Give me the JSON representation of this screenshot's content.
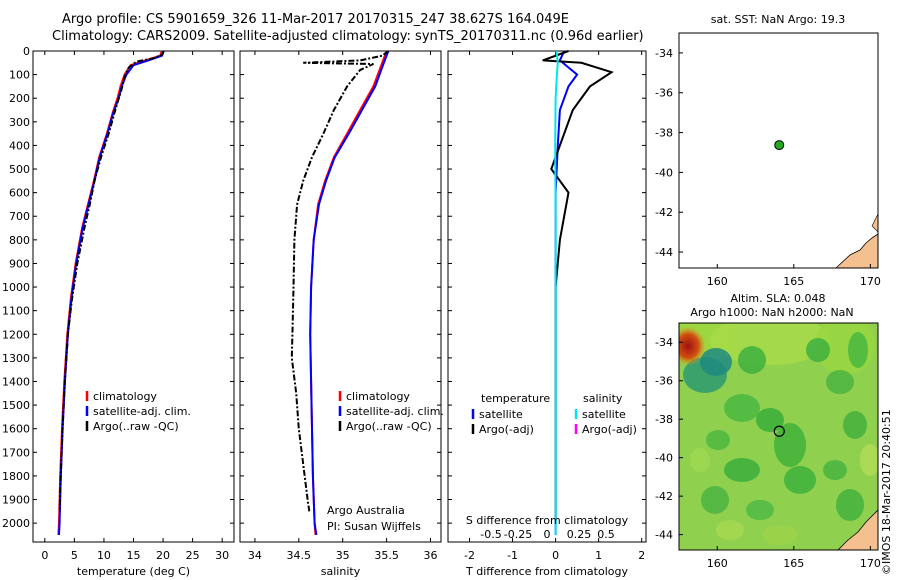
{
  "header": {
    "line1": "Argo profile: CS 5901659_326 11-Mar-2017 20170315_247 38.627S 164.049E",
    "line2": "Climatology: CARS2009. Satellite-adjusted climatology: synTS_20170311.nc (0.96d earlier)"
  },
  "credit": "©IMOS 18-Mar-2017 20:40:51",
  "colors": {
    "climatology": "#ff0000",
    "satellite": "#0000ff",
    "argo": "#000000",
    "cyan": "#00e5ee",
    "magenta": "#ff00ff",
    "land": "#f5c08f"
  },
  "chart_data": [
    {
      "type": "line",
      "panel": "temperature",
      "xlabel": "temperature (deg C)",
      "x_ticks": [
        0,
        5,
        10,
        15,
        20,
        25,
        30
      ],
      "xlim": [
        -2,
        32
      ],
      "ylim": [
        2080,
        0
      ],
      "y_ticks": [
        0,
        100,
        200,
        300,
        400,
        500,
        600,
        700,
        800,
        900,
        1000,
        1100,
        1200,
        1300,
        1400,
        1500,
        1600,
        1700,
        1800,
        1900,
        2000
      ],
      "legend": [
        "climatology",
        "satellite-adj. clim.",
        "Argo(..raw -QC)"
      ],
      "series": [
        {
          "name": "climatology",
          "values": [
            [
              19.8,
              0
            ],
            [
              19.5,
              20
            ],
            [
              17,
              40
            ],
            [
              14.5,
              60
            ],
            [
              13.5,
              100
            ],
            [
              12.8,
              150
            ],
            [
              12.3,
              200
            ],
            [
              11.5,
              260
            ],
            [
              10.5,
              350
            ],
            [
              9.2,
              450
            ],
            [
              8.3,
              550
            ],
            [
              7.3,
              650
            ],
            [
              6.3,
              750
            ],
            [
              5.2,
              900
            ],
            [
              4.4,
              1050
            ],
            [
              3.8,
              1200
            ],
            [
              3.3,
              1400
            ],
            [
              2.9,
              1600
            ],
            [
              2.6,
              1800
            ],
            [
              2.4,
              2000
            ],
            [
              2.3,
              2050
            ]
          ]
        },
        {
          "name": "satellite-adj. clim.",
          "values": [
            [
              20.0,
              0
            ],
            [
              19.8,
              20
            ],
            [
              17.5,
              40
            ],
            [
              15,
              60
            ],
            [
              13.8,
              100
            ],
            [
              13,
              150
            ],
            [
              12.5,
              200
            ],
            [
              11.6,
              260
            ],
            [
              10.6,
              350
            ],
            [
              9.3,
              450
            ],
            [
              8.4,
              550
            ],
            [
              7.4,
              650
            ],
            [
              6.4,
              750
            ],
            [
              5.3,
              900
            ],
            [
              4.5,
              1050
            ],
            [
              3.9,
              1200
            ],
            [
              3.4,
              1400
            ],
            [
              3.0,
              1600
            ],
            [
              2.7,
              1800
            ],
            [
              2.5,
              2000
            ],
            [
              2.4,
              2050
            ]
          ]
        },
        {
          "name": "Argo(..raw -QC)",
          "values": [
            [
              20.1,
              0
            ],
            [
              19.9,
              15
            ],
            [
              18.5,
              30
            ],
            [
              15.5,
              45
            ],
            [
              14.2,
              70
            ],
            [
              13.5,
              110
            ],
            [
              13.0,
              160
            ],
            [
              12.4,
              210
            ],
            [
              11.8,
              260
            ],
            [
              10.8,
              350
            ],
            [
              9.5,
              450
            ],
            [
              8.4,
              550
            ],
            [
              7.6,
              650
            ],
            [
              6.7,
              750
            ],
            [
              5.5,
              900
            ],
            [
              4.6,
              1050
            ],
            [
              3.9,
              1200
            ],
            [
              3.4,
              1400
            ],
            [
              3.0,
              1600
            ],
            [
              2.7,
              1800
            ],
            [
              2.5,
              1950
            ]
          ]
        }
      ]
    },
    {
      "type": "line",
      "panel": "salinity",
      "xlabel": "salinity",
      "x_ticks": [
        34,
        34.5,
        35,
        35.5,
        36
      ],
      "xlim": [
        33.83,
        36.12
      ],
      "ylim": [
        2080,
        0
      ],
      "legend": [
        "climatology",
        "satellite-adj. clim.",
        "Argo(..raw -QC)"
      ],
      "annotation": [
        "Argo Australia",
        "PI: Susan Wijffels"
      ],
      "series": [
        {
          "name": "climatology",
          "values": [
            [
              35.5,
              0
            ],
            [
              35.45,
              50
            ],
            [
              35.35,
              150
            ],
            [
              35.2,
              250
            ],
            [
              35.05,
              350
            ],
            [
              34.9,
              450
            ],
            [
              34.8,
              550
            ],
            [
              34.72,
              650
            ],
            [
              34.67,
              800
            ],
            [
              34.64,
              1000
            ],
            [
              34.63,
              1200
            ],
            [
              34.64,
              1400
            ],
            [
              34.65,
              1600
            ],
            [
              34.66,
              1800
            ],
            [
              34.68,
              2000
            ],
            [
              34.69,
              2050
            ]
          ]
        },
        {
          "name": "satellite-adj. clim.",
          "values": [
            [
              35.52,
              0
            ],
            [
              35.47,
              50
            ],
            [
              35.37,
              150
            ],
            [
              35.22,
              250
            ],
            [
              35.07,
              350
            ],
            [
              34.91,
              450
            ],
            [
              34.81,
              550
            ],
            [
              34.73,
              650
            ],
            [
              34.67,
              800
            ],
            [
              34.64,
              1000
            ],
            [
              34.63,
              1200
            ],
            [
              34.64,
              1400
            ],
            [
              34.65,
              1600
            ],
            [
              34.66,
              1800
            ],
            [
              34.68,
              2000
            ],
            [
              34.7,
              2050
            ]
          ]
        },
        {
          "name": "Argo(..raw -QC)",
          "values": [
            [
              35.52,
              0
            ],
            [
              35.45,
              20
            ],
            [
              35.2,
              40
            ],
            [
              34.55,
              50
            ],
            [
              35.35,
              55
            ],
            [
              35.2,
              80
            ],
            [
              35.05,
              150
            ],
            [
              34.9,
              250
            ],
            [
              34.78,
              350
            ],
            [
              34.65,
              450
            ],
            [
              34.55,
              550
            ],
            [
              34.48,
              650
            ],
            [
              34.45,
              800
            ],
            [
              34.44,
              1000
            ],
            [
              34.43,
              1150
            ],
            [
              34.42,
              1300
            ],
            [
              34.47,
              1450
            ],
            [
              34.5,
              1600
            ],
            [
              34.55,
              1750
            ],
            [
              34.6,
              1900
            ],
            [
              34.62,
              1950
            ]
          ]
        }
      ]
    },
    {
      "type": "line",
      "panel": "difference",
      "xlabel": "T difference from climatology",
      "x_ticks": [
        -2,
        -1,
        0,
        1,
        2
      ],
      "xlim": [
        -2.5,
        2.1
      ],
      "top_label": "S difference from climatology",
      "top_ticks": [
        "-0.5",
        "-0.25",
        "0",
        "0.25",
        "0.5"
      ],
      "legend": {
        "temperature_header": "temperature",
        "salinity_header": "salinity",
        "items": [
          "satellite",
          "Argo(-adj)",
          "satellite",
          "Argo(-adj)"
        ]
      },
      "series": [
        {
          "name": "satellite",
          "group": "temperature",
          "values": [
            [
              0.2,
              0
            ],
            [
              0.1,
              40
            ],
            [
              0.5,
              100
            ],
            [
              0.3,
              150
            ],
            [
              0.1,
              250
            ],
            [
              0.05,
              400
            ],
            [
              0,
              600
            ],
            [
              0,
              1000
            ],
            [
              0,
              1500
            ],
            [
              0,
              2050
            ]
          ]
        },
        {
          "name": "Argo(-adj)",
          "group": "temperature",
          "values": [
            [
              0.3,
              0
            ],
            [
              -0.3,
              40
            ],
            [
              0.6,
              50
            ],
            [
              1.3,
              90
            ],
            [
              0.8,
              150
            ],
            [
              0.4,
              250
            ],
            [
              0.1,
              400
            ],
            [
              -0.1,
              500
            ],
            [
              0.3,
              600
            ],
            [
              0.1,
              800
            ],
            [
              0,
              1000
            ],
            [
              0,
              1500
            ],
            [
              0,
              2000
            ]
          ]
        },
        {
          "name": "satellite",
          "group": "salinity",
          "values": [
            [
              0.02,
              0
            ],
            [
              0.05,
              50
            ],
            [
              0.03,
              100
            ],
            [
              0,
              200
            ],
            [
              -0.01,
              400
            ],
            [
              0,
              700
            ],
            [
              0,
              1200
            ],
            [
              0,
              2050
            ]
          ]
        }
      ]
    },
    {
      "type": "scatter",
      "panel": "map-sst",
      "title": "sat. SST: NaN Argo: 19.3",
      "x_ticks": [
        160,
        165,
        170
      ],
      "y_ticks": [
        -34,
        -36,
        -38,
        -40,
        -42,
        -44
      ],
      "xlim": [
        157.5,
        170.5
      ],
      "ylim": [
        -44.8,
        -33
      ],
      "points": [
        [
          164.049,
          -38.627
        ]
      ]
    },
    {
      "type": "heatmap",
      "panel": "map-sla",
      "title": "Altim. SLA: 0.048",
      "subtitle": "Argo h1000: NaN h2000: NaN",
      "x_ticks": [
        160,
        165,
        170
      ],
      "y_ticks": [
        -34,
        -36,
        -38,
        -40,
        -42,
        -44
      ],
      "xlim": [
        157.5,
        170.5
      ],
      "ylim": [
        -44.8,
        -33
      ],
      "points": [
        [
          164.049,
          -38.627
        ]
      ]
    }
  ]
}
